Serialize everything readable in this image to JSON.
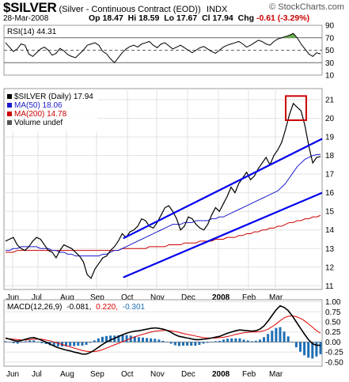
{
  "header": {
    "symbol": "$SILVER",
    "description": "(Silver - Continuous Contract (EOD))",
    "exchange": "INDX",
    "brand": "© StockCharts.com",
    "date": "28-Mar-2008",
    "open_label": "Op",
    "open": "18.47",
    "high_label": "Hi",
    "high": "18.59",
    "low_label": "Lo",
    "low": "17.67",
    "close_label": "Cl",
    "close": "17.94",
    "change_label": "Chg",
    "change": "-0.61 (-3.29%)"
  },
  "colors": {
    "price": "#000000",
    "ma50": "#1a1acc",
    "ma200": "#cc0000",
    "trend": "#0000ee",
    "rsi_fill": "#6ab04c",
    "hist": "#1f6fb5",
    "down_bar": "#cc0000",
    "signal": "#e00000"
  },
  "chart_data": [
    {
      "type": "line",
      "title": "RSI(14) 44.31",
      "indicator": "RSI",
      "period": 14,
      "last": 44.31,
      "ylim": [
        10,
        90
      ],
      "yticks": [
        10,
        30,
        50,
        70,
        90
      ],
      "reference_lines": [
        30,
        50,
        70
      ],
      "values": [
        62,
        55,
        48,
        52,
        60,
        58,
        44,
        40,
        46,
        52,
        55,
        50,
        42,
        45,
        53,
        49,
        43,
        40,
        38,
        44,
        50,
        58,
        60,
        62,
        58,
        48,
        44,
        36,
        30,
        38,
        46,
        52,
        56,
        58,
        55,
        60,
        62,
        64,
        58,
        54,
        60,
        62,
        57,
        52,
        55,
        58,
        54,
        50,
        46,
        50,
        54,
        56,
        52,
        48,
        45,
        50,
        55,
        58,
        60,
        62,
        64,
        60,
        55,
        58,
        62,
        66,
        64,
        60,
        58,
        64,
        68,
        70,
        72,
        74,
        77,
        70,
        60,
        52,
        44,
        40,
        46,
        44
      ]
    },
    {
      "type": "line",
      "title": "$SILVER (Daily) 17.94",
      "ylim": [
        10.8,
        21.6
      ],
      "yticks": [
        11,
        12,
        13,
        14,
        15,
        16,
        17,
        18,
        19,
        20,
        21
      ],
      "x_tick_labels": [
        "Jun",
        "Jul",
        "Aug",
        "Sep",
        "Oct",
        "Nov",
        "Dec",
        "2008",
        "Feb",
        "Mar"
      ],
      "series": [
        {
          "name": "$SILVER (Daily) 17.94",
          "values": [
            13.4,
            13.5,
            13.6,
            13.2,
            13.0,
            12.9,
            13.1,
            13.4,
            13.6,
            13.5,
            13.2,
            12.9,
            12.8,
            12.5,
            12.9,
            13.2,
            13.1,
            13.0,
            12.8,
            12.6,
            12.3,
            11.6,
            11.4,
            11.9,
            12.2,
            12.5,
            12.6,
            12.9,
            13.1,
            13.4,
            13.8,
            13.6,
            13.9,
            14.0,
            14.2,
            14.6,
            14.5,
            14.2,
            14.1,
            14.4,
            14.8,
            15.2,
            15.3,
            15.0,
            14.6,
            14.0,
            14.2,
            14.7,
            14.6,
            14.3,
            14.1,
            14.0,
            14.3,
            14.8,
            15.2,
            15.0,
            15.4,
            15.8,
            16.3,
            16.0,
            16.5,
            16.8,
            17.1,
            16.7,
            16.9,
            17.3,
            17.6,
            17.9,
            17.5,
            18.0,
            18.3,
            18.7,
            19.4,
            20.2,
            20.8,
            20.6,
            20.4,
            19.6,
            18.5,
            17.6,
            17.9,
            17.94
          ]
        },
        {
          "name": "MA(50) 18.06",
          "values": [
            12.9,
            12.9,
            13.0,
            13.0,
            13.1,
            13.1,
            13.1,
            13.1,
            13.1,
            13.0,
            13.0,
            13.0,
            12.9,
            12.9,
            12.8,
            12.8,
            12.7,
            12.7,
            12.6,
            12.6,
            12.6,
            12.6,
            12.6,
            12.6,
            12.6,
            12.7,
            12.7,
            12.8,
            12.9,
            12.9,
            13.0,
            13.1,
            13.2,
            13.3,
            13.4,
            13.5,
            13.6,
            13.7,
            13.8,
            13.9,
            14.0,
            14.1,
            14.2,
            14.3,
            14.3,
            14.3,
            14.4,
            14.4,
            14.4,
            14.5,
            14.5,
            14.5,
            14.5,
            14.6,
            14.6,
            14.7,
            14.7,
            14.8,
            14.9,
            15.0,
            15.1,
            15.2,
            15.3,
            15.4,
            15.5,
            15.6,
            15.7,
            15.8,
            15.9,
            16.0,
            16.1,
            16.3,
            16.5,
            16.8,
            17.1,
            17.4,
            17.6,
            17.8,
            17.9,
            18.0,
            18.05,
            18.06
          ]
        },
        {
          "name": "MA(200) 14.78",
          "values": [
            12.8,
            12.8,
            12.8,
            12.9,
            12.9,
            12.9,
            12.9,
            12.9,
            12.9,
            12.9,
            12.9,
            12.9,
            12.9,
            12.9,
            12.9,
            12.9,
            12.9,
            12.9,
            12.9,
            12.9,
            12.9,
            12.9,
            12.9,
            12.9,
            12.9,
            12.9,
            12.9,
            12.9,
            12.9,
            12.9,
            13.0,
            13.0,
            13.0,
            13.0,
            13.0,
            13.0,
            13.0,
            13.1,
            13.1,
            13.1,
            13.1,
            13.1,
            13.2,
            13.2,
            13.2,
            13.2,
            13.3,
            13.3,
            13.3,
            13.3,
            13.4,
            13.4,
            13.4,
            13.4,
            13.5,
            13.5,
            13.5,
            13.6,
            13.6,
            13.6,
            13.7,
            13.7,
            13.8,
            13.8,
            13.9,
            13.9,
            14.0,
            14.0,
            14.1,
            14.1,
            14.2,
            14.2,
            14.3,
            14.4,
            14.4,
            14.5,
            14.5,
            14.6,
            14.6,
            14.7,
            14.7,
            14.78
          ]
        }
      ],
      "trend_channel": [
        {
          "from": [
            0.375,
            13.55
          ],
          "to": [
            1.0,
            18.9
          ]
        },
        {
          "from": [
            0.375,
            11.45
          ],
          "to": [
            1.0,
            16.0
          ]
        }
      ],
      "annotations": [
        "Volume undef"
      ]
    },
    {
      "type": "line",
      "title": "MACD(12,26,9) -0.081, 0.220, -0.301",
      "ylim": [
        -0.6,
        1.05
      ],
      "yticks": [
        -0.5,
        -0.25,
        0.0,
        0.25,
        0.5,
        0.75,
        1.0
      ],
      "x_tick_labels": [
        "Jun",
        "Jul",
        "Aug",
        "Sep",
        "Oct",
        "Nov",
        "Dec",
        "2008",
        "Feb",
        "Mar"
      ],
      "series": [
        {
          "name": "MACD",
          "values": [
            0.1,
            0.07,
            0.04,
            0.02,
            0.04,
            0.07,
            0.1,
            0.11,
            0.08,
            0.04,
            0.0,
            -0.05,
            -0.1,
            -0.14,
            -0.17,
            -0.2,
            -0.22,
            -0.25,
            -0.27,
            -0.3,
            -0.3,
            -0.26,
            -0.2,
            -0.13,
            -0.06,
            0.0,
            0.05,
            0.09,
            0.14,
            0.18,
            0.22,
            0.25,
            0.27,
            0.28,
            0.3,
            0.32,
            0.34,
            0.35,
            0.34,
            0.32,
            0.29,
            0.24,
            0.18,
            0.14,
            0.12,
            0.1,
            0.08,
            0.06,
            0.06,
            0.07,
            0.08,
            0.1,
            0.12,
            0.14,
            0.18,
            0.22,
            0.25,
            0.28,
            0.3,
            0.29,
            0.28,
            0.27,
            0.28,
            0.32,
            0.4,
            0.52,
            0.66,
            0.8,
            0.9,
            0.86,
            0.78,
            0.65,
            0.5,
            0.35,
            0.2,
            0.06,
            -0.04,
            -0.08,
            -0.081
          ]
        },
        {
          "name": "Signal",
          "values": [
            0.08,
            0.08,
            0.07,
            0.06,
            0.05,
            0.05,
            0.06,
            0.07,
            0.07,
            0.07,
            0.05,
            0.03,
            0.0,
            -0.03,
            -0.06,
            -0.09,
            -0.12,
            -0.15,
            -0.18,
            -0.21,
            -0.23,
            -0.24,
            -0.24,
            -0.22,
            -0.19,
            -0.15,
            -0.11,
            -0.07,
            -0.03,
            0.01,
            0.05,
            0.09,
            0.13,
            0.16,
            0.19,
            0.22,
            0.25,
            0.27,
            0.28,
            0.29,
            0.29,
            0.28,
            0.26,
            0.24,
            0.21,
            0.19,
            0.17,
            0.15,
            0.13,
            0.11,
            0.1,
            0.1,
            0.1,
            0.11,
            0.12,
            0.14,
            0.16,
            0.19,
            0.21,
            0.23,
            0.24,
            0.25,
            0.25,
            0.26,
            0.28,
            0.32,
            0.38,
            0.45,
            0.53,
            0.6,
            0.64,
            0.65,
            0.63,
            0.59,
            0.53,
            0.45,
            0.37,
            0.28,
            0.22
          ]
        }
      ]
    }
  ],
  "panels": {
    "rsi": {
      "label": "RSI(14) 44.31"
    },
    "price": {
      "legend": [
        {
          "label": "$SILVER (Daily) 17.94"
        },
        {
          "label": "MA(50) 18.06"
        },
        {
          "label": "MA(200) 14.78"
        },
        {
          "label": "Volume undef"
        }
      ]
    },
    "macd": {
      "label_prefix": "MACD(12,26,9)",
      "macd": "-0.081,",
      "signal": "0.220,",
      "hist": "-0.301"
    }
  }
}
